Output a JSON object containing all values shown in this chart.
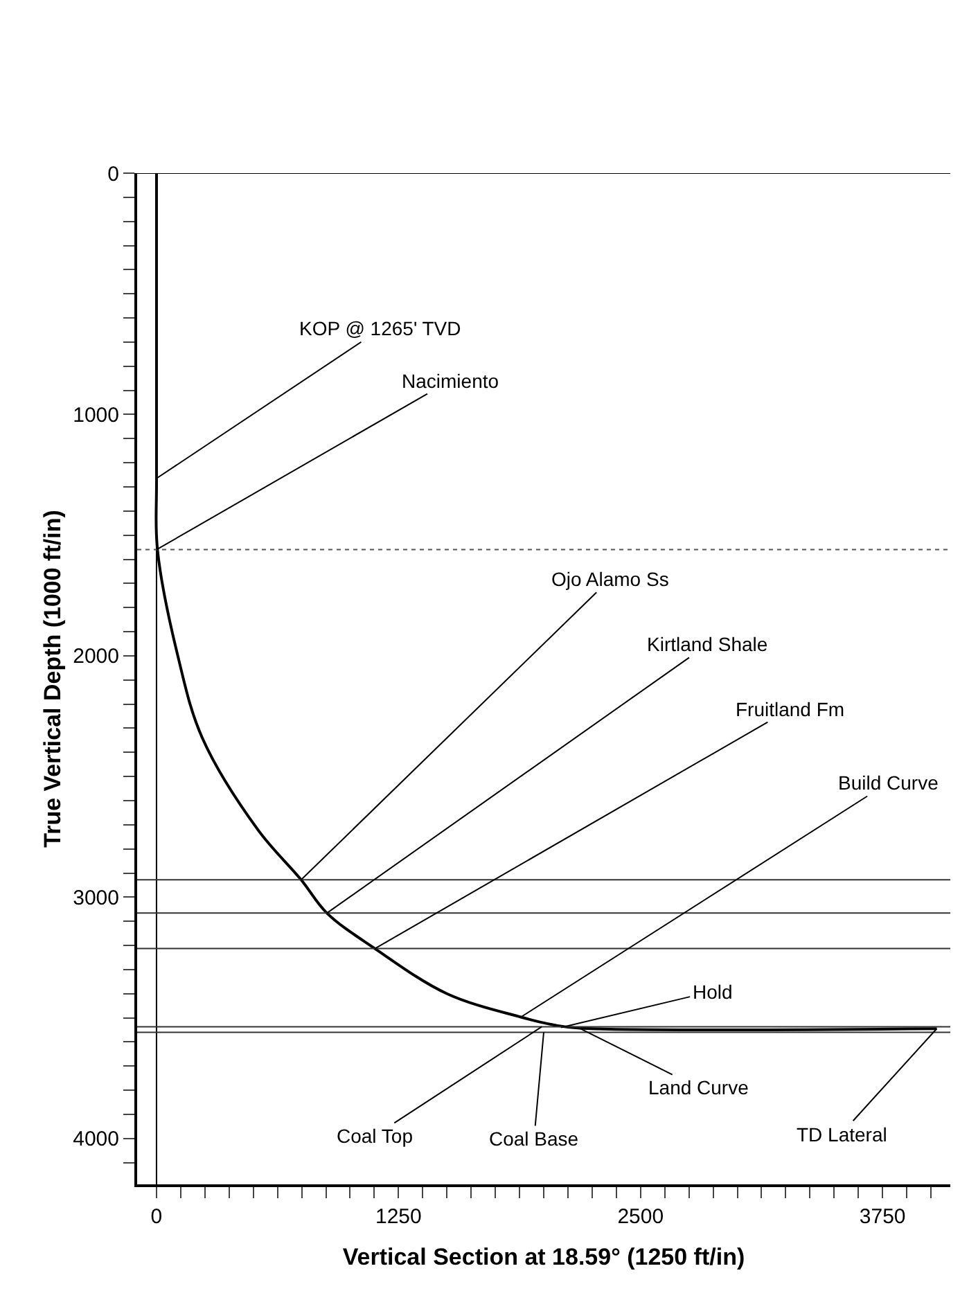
{
  "chart_data": {
    "type": "line",
    "xlabel": "Vertical Section at 18.59° (1250 ft/in)",
    "ylabel": "True Vertical Depth (1000 ft/in)",
    "x": [
      0,
      0,
      5,
      110,
      237,
      524,
      747,
      880,
      1128,
      1500,
      1882,
      2055,
      2185,
      4030
    ],
    "series": [
      {
        "color": "#000000",
        "values": [
          0,
          1265,
          1560,
          2000,
          2341,
          2721,
          2928,
          3066,
          3213,
          3400,
          3497,
          3530,
          3543,
          3545
        ]
      }
    ],
    "xlim": [
      -100,
      4100
    ],
    "ylim": [
      4190,
      0
    ],
    "xticks": [
      0,
      {
        "value": 125,
        "label": null
      },
      {
        "value": 250,
        "label": null
      },
      {
        "value": 375,
        "label": null
      },
      {
        "value": 500,
        "label": null
      },
      {
        "value": 625,
        "label": null
      },
      {
        "value": 750,
        "label": null
      },
      {
        "value": 875,
        "label": null
      },
      {
        "value": 1000,
        "label": null
      },
      {
        "value": 1125,
        "label": null
      },
      1250,
      {
        "value": 1375,
        "label": null
      },
      {
        "value": 1500,
        "label": null
      },
      {
        "value": 1625,
        "label": null
      },
      {
        "value": 1750,
        "label": null
      },
      {
        "value": 1875,
        "label": null
      },
      {
        "value": 2000,
        "label": null
      },
      {
        "value": 2125,
        "label": null
      },
      {
        "value": 2250,
        "label": null
      },
      {
        "value": 2375,
        "label": null
      },
      2500,
      {
        "value": 2625,
        "label": null
      },
      {
        "value": 2750,
        "label": null
      },
      {
        "value": 2875,
        "label": null
      },
      {
        "value": 3000,
        "label": null
      },
      {
        "value": 3125,
        "label": null
      },
      {
        "value": 3250,
        "label": null
      },
      {
        "value": 3375,
        "label": null
      },
      {
        "value": 3500,
        "label": null
      },
      {
        "value": 3625,
        "label": null
      },
      3750,
      {
        "value": 3875,
        "label": null
      },
      {
        "value": 4000,
        "label": null
      }
    ],
    "yticks": [
      0,
      {
        "value": 100,
        "label": null
      },
      {
        "value": 200,
        "label": null
      },
      {
        "value": 300,
        "label": null
      },
      {
        "value": 400,
        "label": null
      },
      {
        "value": 500,
        "label": null
      },
      {
        "value": 600,
        "label": null
      },
      {
        "value": 700,
        "label": null
      },
      {
        "value": 800,
        "label": null
      },
      {
        "value": 900,
        "label": null
      },
      1000,
      {
        "value": 1100,
        "label": null
      },
      {
        "value": 1200,
        "label": null
      },
      {
        "value": 1300,
        "label": null
      },
      {
        "value": 1400,
        "label": null
      },
      {
        "value": 1500,
        "label": null
      },
      {
        "value": 1600,
        "label": null
      },
      {
        "value": 1700,
        "label": null
      },
      {
        "value": 1800,
        "label": null
      },
      {
        "value": 1900,
        "label": null
      },
      2000,
      {
        "value": 2100,
        "label": null
      },
      {
        "value": 2200,
        "label": null
      },
      {
        "value": 2300,
        "label": null
      },
      {
        "value": 2400,
        "label": null
      },
      {
        "value": 2500,
        "label": null
      },
      {
        "value": 2600,
        "label": null
      },
      {
        "value": 2700,
        "label": null
      },
      {
        "value": 2800,
        "label": null
      },
      {
        "value": 2900,
        "label": null
      },
      3000,
      {
        "value": 3100,
        "label": null
      },
      {
        "value": 3200,
        "label": null
      },
      {
        "value": 3300,
        "label": null
      },
      {
        "value": 3400,
        "label": null
      },
      {
        "value": 3500,
        "label": null
      },
      {
        "value": 3600,
        "label": null
      },
      {
        "value": 3700,
        "label": null
      },
      {
        "value": 3800,
        "label": null
      },
      {
        "value": 3900,
        "label": null
      },
      4000,
      {
        "value": 4100,
        "label": null
      }
    ],
    "marker": "none",
    "line_style": "solid",
    "ref_lines": [
      {
        "axis": "x",
        "value": 0,
        "color": "#000000",
        "line_style": "solid"
      },
      {
        "axis": "y",
        "value": 0,
        "color": "#000000",
        "line_style": "solid"
      },
      {
        "axis": "y",
        "value": 1560,
        "color": "#555555",
        "line_style": "dotted"
      },
      {
        "axis": "y",
        "value": 2928,
        "color": "#333333",
        "line_style": "solid"
      },
      {
        "axis": "y",
        "value": 3066,
        "color": "#333333",
        "line_style": "solid"
      },
      {
        "axis": "y",
        "value": 3213,
        "color": "#333333",
        "line_style": "solid"
      },
      {
        "axis": "y",
        "value": 3537,
        "color": "#333333",
        "line_style": "solid"
      },
      {
        "axis": "y",
        "value": 3560,
        "color": "#333333",
        "line_style": "solid"
      }
    ],
    "annotations": [
      {
        "text": "KOP @ 1265' TVD",
        "x": 0,
        "y": 1265
      },
      {
        "text": "Nacimiento",
        "x": 0,
        "y": 1560
      },
      {
        "text": "Ojo Alamo Ss",
        "x": 747,
        "y": 2928
      },
      {
        "text": "Kirtland Shale",
        "x": 880,
        "y": 3066
      },
      {
        "text": "Fruitland Fm",
        "x": 1128,
        "y": 3213
      },
      {
        "text": "Build Curve",
        "x": 1882,
        "y": 3497
      },
      {
        "text": "Hold",
        "x": 2090,
        "y": 3540
      },
      {
        "text": "Land Curve",
        "x": 2185,
        "y": 3543
      },
      {
        "text": "Coal Top",
        "x": 1990,
        "y": 3537
      },
      {
        "text": "Coal Base",
        "x": 2000,
        "y": 3560
      },
      {
        "text": "TD Lateral",
        "x": 4030,
        "y": 3545
      }
    ]
  }
}
